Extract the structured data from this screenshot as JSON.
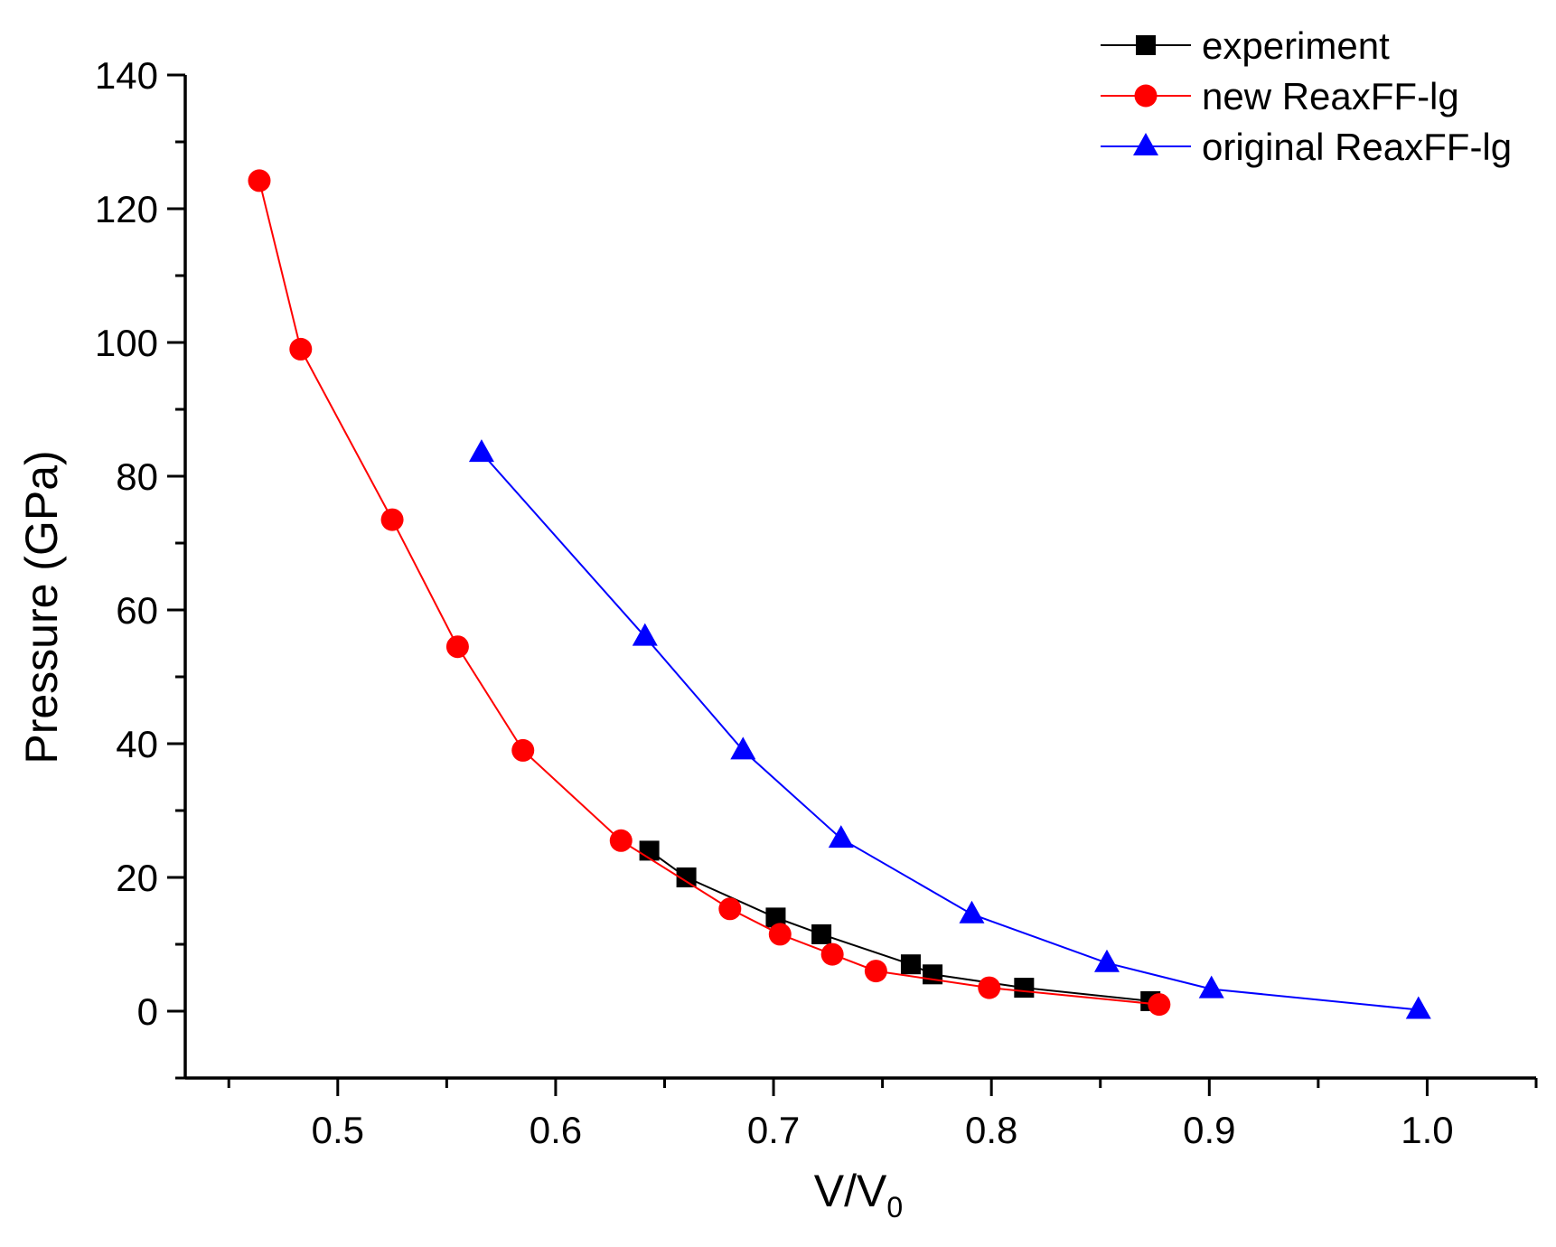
{
  "chart_data": {
    "type": "line",
    "title": "",
    "xlabel": "V/V",
    "xlabel_subscript": "0",
    "ylabel": "Pressure (GPa)",
    "xlim": [
      0.43,
      1.05
    ],
    "ylim": [
      -10,
      140
    ],
    "x_ticks": [
      0.5,
      0.6,
      0.7,
      0.8,
      0.9,
      1.0
    ],
    "x_tick_labels": [
      "0.5",
      "0.6",
      "0.7",
      "0.8",
      "0.9",
      "1.0"
    ],
    "y_ticks": [
      0,
      20,
      40,
      60,
      80,
      100,
      120,
      140
    ],
    "y_tick_labels": [
      "0",
      "20",
      "40",
      "60",
      "80",
      "100",
      "120",
      "140"
    ],
    "grid": false,
    "legend_position": "top-right",
    "series": [
      {
        "name": "experiment",
        "marker": "square",
        "color": "#000000",
        "x": [
          0.643,
          0.66,
          0.701,
          0.722,
          0.763,
          0.773,
          0.815,
          0.873
        ],
        "y": [
          24,
          20,
          14,
          11.5,
          7,
          5.5,
          3.5,
          1.5
        ]
      },
      {
        "name": "new ReaxFF-lg",
        "marker": "circle",
        "color": "#ff0000",
        "x": [
          0.464,
          0.483,
          0.525,
          0.555,
          0.585,
          0.63,
          0.68,
          0.703,
          0.727,
          0.747,
          0.799,
          0.877
        ],
        "y": [
          124.2,
          99,
          73.5,
          54.5,
          39,
          25.5,
          15.3,
          11.5,
          8.5,
          6,
          3.5,
          1
        ]
      },
      {
        "name": "original ReaxFF-lg",
        "marker": "triangle",
        "color": "#0000ff",
        "x": [
          0.566,
          0.641,
          0.686,
          0.731,
          0.791,
          0.853,
          0.901,
          0.996
        ],
        "y": [
          83.5,
          56,
          39,
          25.8,
          14.5,
          7.2,
          3.3,
          0.2
        ]
      }
    ]
  }
}
